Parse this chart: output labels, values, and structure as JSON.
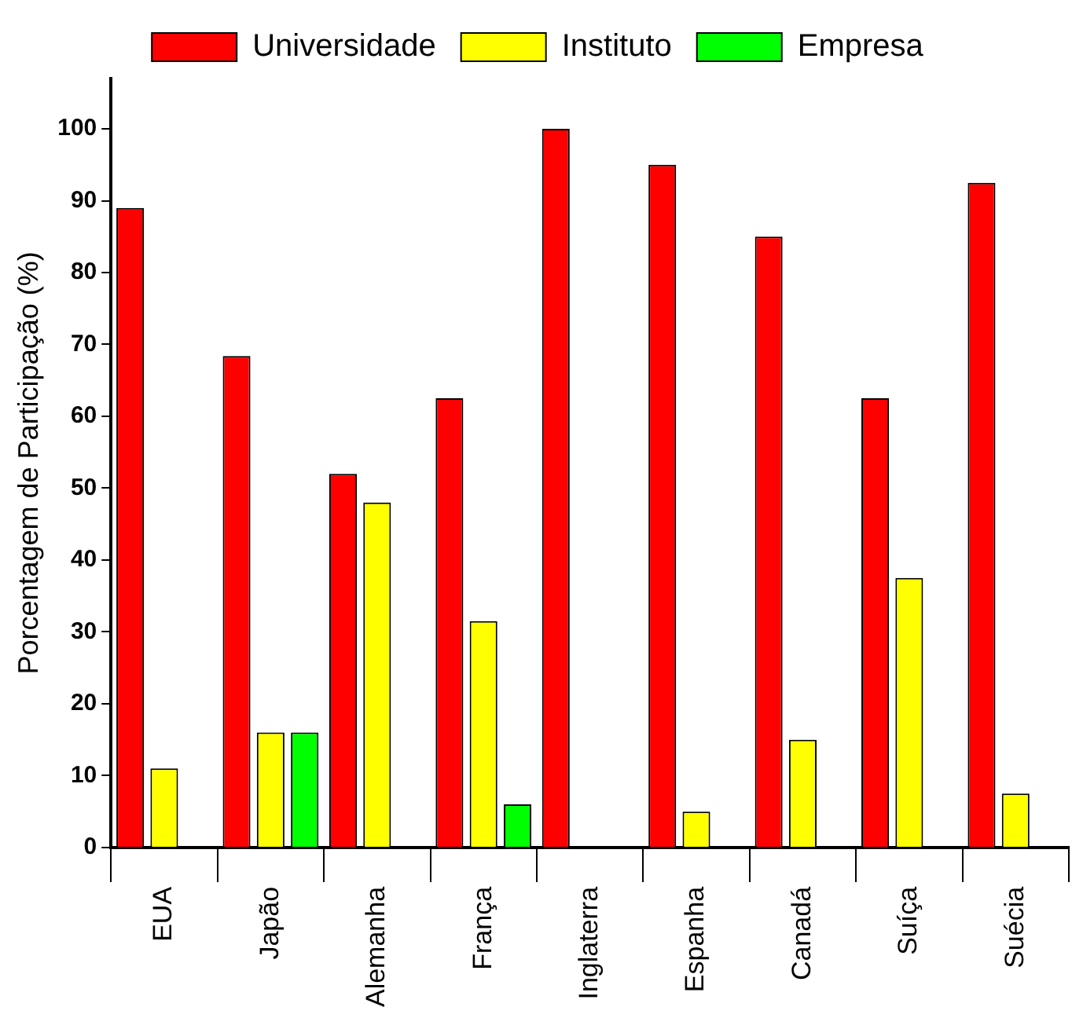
{
  "chart_data": {
    "type": "bar",
    "ylabel": "Porcentagem de Participação (%)",
    "categories": [
      "EUA",
      "Japão",
      "Alemanha",
      "França",
      "Inglaterra",
      "Espanha",
      "Canadá",
      "Suíça",
      "Suécia"
    ],
    "series": [
      {
        "name": "Universidade",
        "color": "#ff0000",
        "values": [
          89,
          68.4,
          52,
          62.5,
          100,
          95,
          85,
          62.5,
          92.5
        ]
      },
      {
        "name": "Instituto",
        "color": "#ffff00",
        "values": [
          11,
          16,
          48,
          31.5,
          null,
          5,
          15,
          37.5,
          7.5
        ]
      },
      {
        "name": "Empresa",
        "color": "#00ff00",
        "values": [
          null,
          16,
          null,
          6,
          null,
          null,
          null,
          null,
          null
        ]
      }
    ],
    "ylim": [
      0,
      107
    ],
    "yticks": [
      0,
      10,
      20,
      30,
      40,
      50,
      60,
      70,
      80,
      90,
      100
    ],
    "grid": false,
    "legend": "top"
  }
}
